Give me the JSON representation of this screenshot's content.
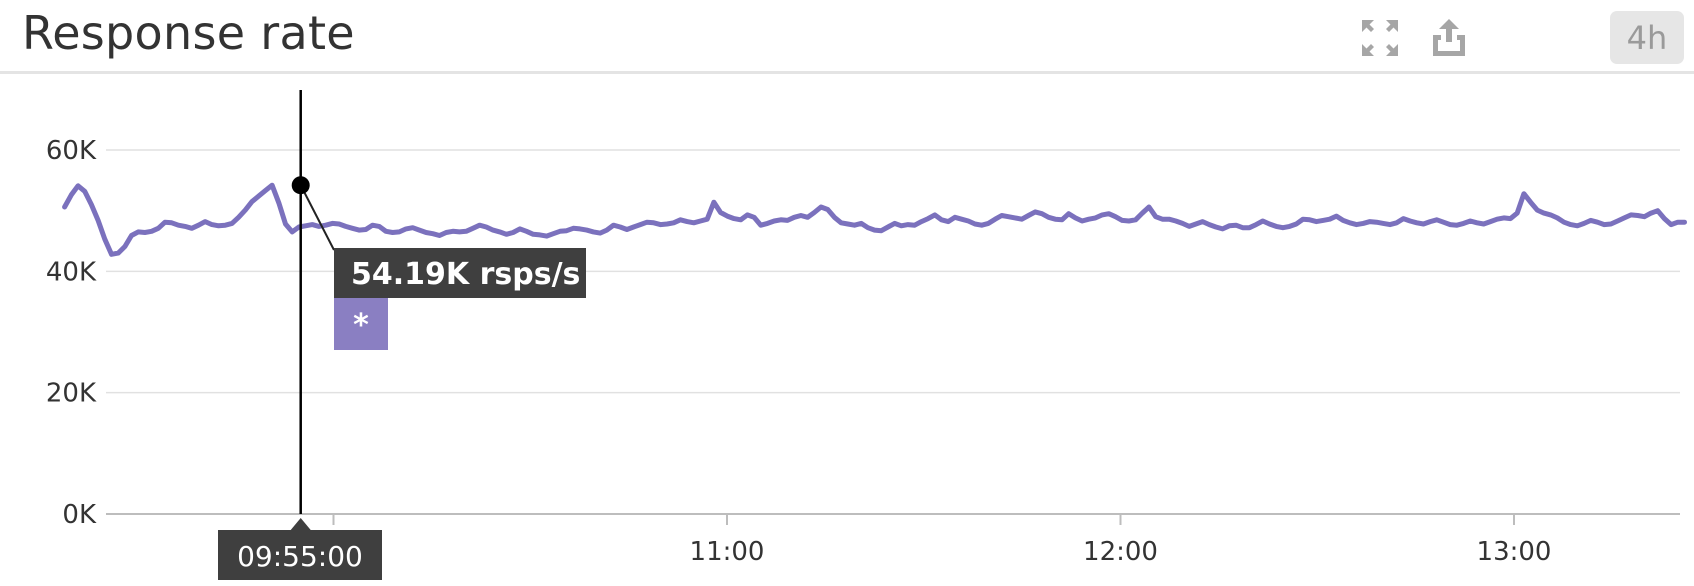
{
  "header": {
    "title": "Response rate",
    "range_label": "4h",
    "icons": [
      "expand-icon",
      "share-icon"
    ]
  },
  "colors": {
    "series": "#7b71bd",
    "grid": "#e1e1e1",
    "tooltip_bg": "#3f3f3f",
    "series_swatch": "#8a7fc2"
  },
  "hover": {
    "time_label": "09:55:00",
    "value_label": "54.19K rsps/s",
    "series_label": "*"
  },
  "chart_data": {
    "type": "line",
    "title": "Response rate",
    "x_start": "09:19",
    "x_end": "13:26",
    "x_ticks": [
      "11:00",
      "12:00",
      "13:00"
    ],
    "y_ticks": [
      "0K",
      "20K",
      "40K",
      "60K"
    ],
    "ylim": [
      0,
      70000
    ],
    "grid": true,
    "hover_time": "09:55",
    "hover_value": 54190,
    "series": [
      {
        "values": [
          50600,
          52600,
          54100,
          53200,
          51000,
          48400,
          45300,
          42800,
          43000,
          44100,
          45900,
          46500,
          46400,
          46600,
          47100,
          48100,
          48000,
          47600,
          47400,
          47100,
          47600,
          48200,
          47700,
          47500,
          47600,
          47900,
          48900,
          50100,
          51500,
          52400,
          53300,
          54190,
          51300,
          47800,
          46500,
          47300,
          47500,
          47700,
          47400,
          47600,
          47900,
          47800,
          47400,
          47100,
          46800,
          46900,
          47600,
          47400,
          46600,
          46400,
          46500,
          47000,
          47200,
          46800,
          46400,
          46200,
          45900,
          46400,
          46600,
          46500,
          46600,
          47100,
          47600,
          47300,
          46800,
          46500,
          46100,
          46400,
          47000,
          46600,
          46100,
          46000,
          45800,
          46200,
          46600,
          46700,
          47100,
          47000,
          46800,
          46500,
          46300,
          46800,
          47600,
          47300,
          46900,
          47300,
          47700,
          48100,
          48000,
          47700,
          47800,
          48000,
          48500,
          48200,
          48000,
          48300,
          48600,
          51400,
          49700,
          49100,
          48700,
          48500,
          49300,
          48900,
          47600,
          47900,
          48300,
          48500,
          48400,
          48900,
          49200,
          48900,
          49700,
          50600,
          50200,
          48900,
          48000,
          47800,
          47600,
          47900,
          47200,
          46800,
          46700,
          47300,
          47900,
          47500,
          47700,
          47600,
          48200,
          48700,
          49300,
          48500,
          48200,
          48900,
          48600,
          48300,
          47800,
          47600,
          47900,
          48600,
          49200,
          49000,
          48800,
          48600,
          49200,
          49800,
          49500,
          48900,
          48600,
          48500,
          49500,
          48800,
          48300,
          48600,
          48800,
          49300,
          49500,
          49000,
          48400,
          48300,
          48500,
          49600,
          50600,
          49000,
          48600,
          48600,
          48300,
          47900,
          47400,
          47800,
          48200,
          47700,
          47300,
          47000,
          47500,
          47600,
          47200,
          47200,
          47700,
          48300,
          47800,
          47400,
          47200,
          47400,
          47800,
          48600,
          48500,
          48200,
          48400,
          48600,
          49100,
          48400,
          48000,
          47700,
          47900,
          48200,
          48100,
          47900,
          47700,
          48000,
          48700,
          48300,
          48000,
          47800,
          48200,
          48500,
          48100,
          47700,
          47600,
          47900,
          48300,
          48000,
          47800,
          48200,
          48600,
          48800,
          48700,
          49600,
          52800,
          51400,
          50100,
          49600,
          49300,
          48800,
          48100,
          47700,
          47500,
          47900,
          48400,
          48100,
          47700,
          47800,
          48300,
          48800,
          49300,
          49200,
          49000,
          49600,
          50000,
          48700,
          47700,
          48100,
          48100
        ]
      }
    ]
  }
}
